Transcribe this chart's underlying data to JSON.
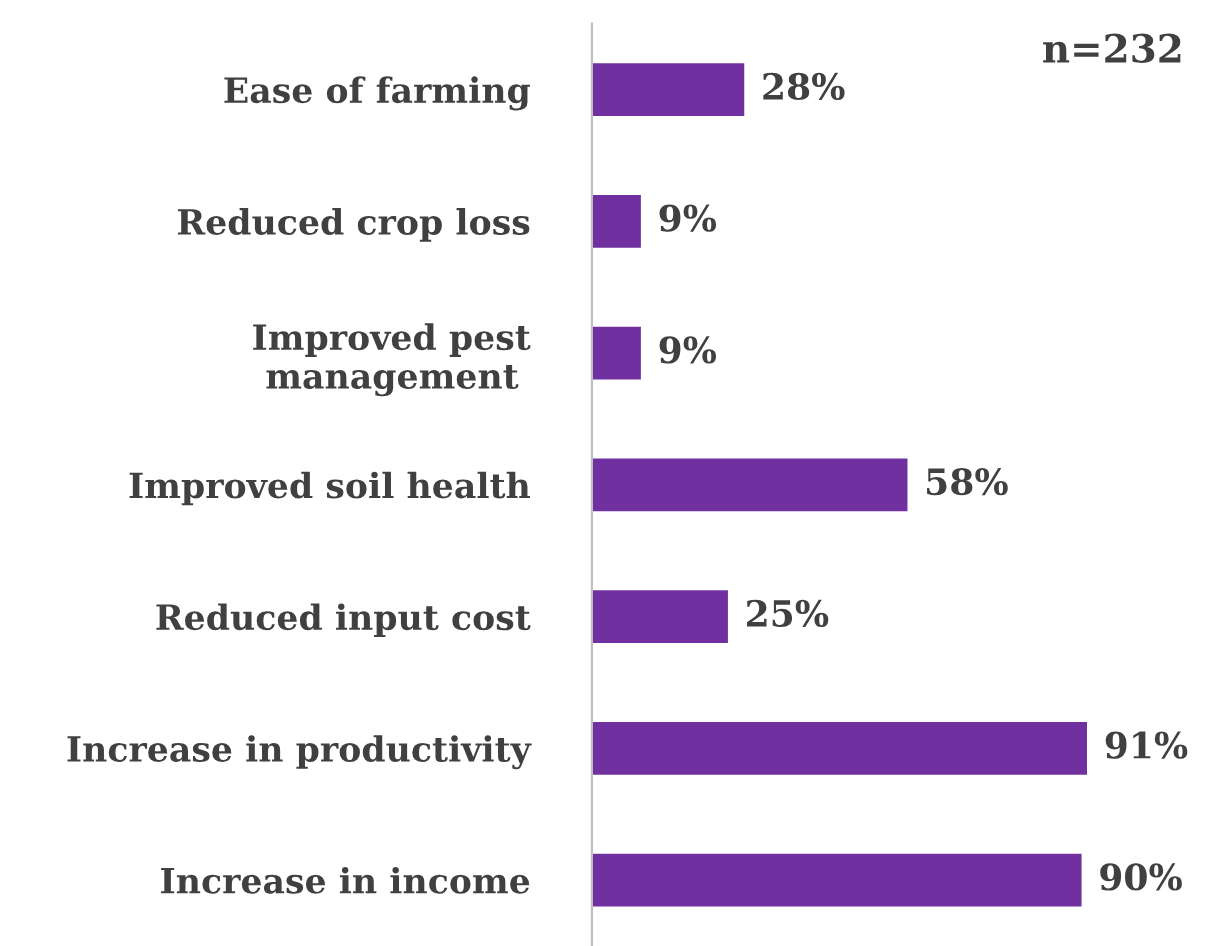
{
  "chart_data": {
    "type": "bar",
    "orientation": "horizontal",
    "categories": [
      "Ease of farming",
      "Reduced crop loss",
      "Improved pest\nmanagement ",
      "Improved soil health",
      "Reduced input cost",
      "Increase in productivity",
      "Increase in income"
    ],
    "values": [
      28,
      9,
      9,
      58,
      25,
      91,
      90
    ],
    "value_labels": [
      "28%",
      "9%",
      "9%",
      "58%",
      "25%",
      "91%",
      "90%"
    ],
    "color": "#7030a0",
    "annotations": [
      "n=232"
    ],
    "grid": false,
    "legend": false
  }
}
